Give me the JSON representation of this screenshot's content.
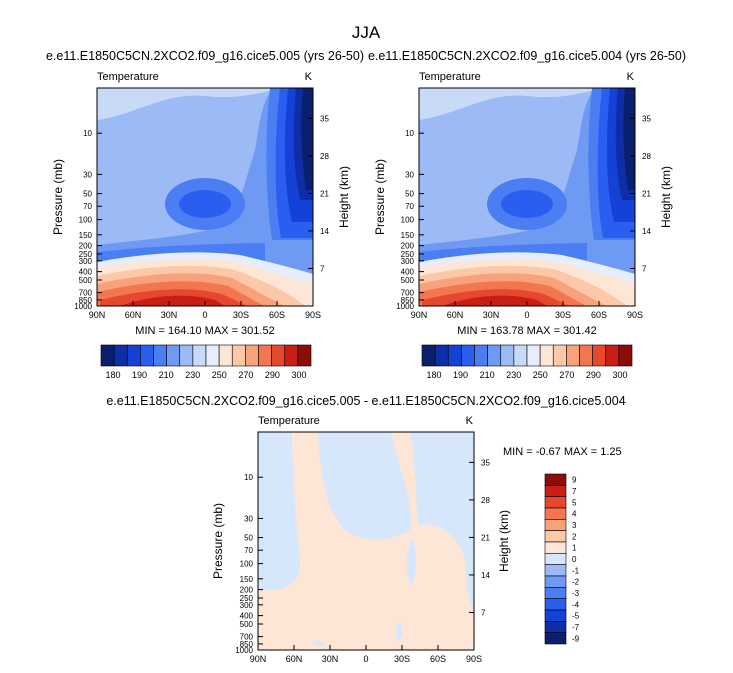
{
  "figure": {
    "season": "JJA"
  },
  "palette_main": [
    "#0a1f6e",
    "#0e2ea8",
    "#1442d6",
    "#2a5ef0",
    "#4a7ef2",
    "#6f9af4",
    "#9cbaf6",
    "#c8daf8",
    "#e6eefc",
    "#fde6d6",
    "#fcc8a8",
    "#f8a27c",
    "#f47650",
    "#e6482e",
    "#c81e14",
    "#8c0c08"
  ],
  "palette_diff": [
    "#0a1f6e",
    "#0e2ea8",
    "#1442d6",
    "#2a5ef0",
    "#4a7ef2",
    "#6f9af4",
    "#9cbaf6",
    "#d6e7fb",
    "#fde6d6",
    "#fcc8a8",
    "#f8a27c",
    "#f47650",
    "#e6482e",
    "#c81e14",
    "#8c0c08"
  ],
  "chart_data": [
    {
      "type": "heatmap",
      "id": "panel1",
      "title": "e.e11.E1850C5CN.2XCO2.f09_g16.cice5.005 (yrs 26-50)",
      "left_label": "Temperature",
      "right_label": "K",
      "ylabel": "Pressure (mb)",
      "y2label": "Height (km)",
      "x_ticks": [
        "90N",
        "60N",
        "30N",
        "0",
        "30S",
        "60S",
        "90S"
      ],
      "p_ticks": [
        10,
        30,
        50,
        70,
        100,
        150,
        200,
        250,
        300,
        400,
        500,
        700,
        850,
        1000
      ],
      "h_ticks": [
        35,
        28,
        21,
        14,
        7
      ],
      "xlim": [
        90,
        -90
      ],
      "ylim_mb": [
        1000,
        3
      ],
      "min_value": 164.1,
      "max_value": 301.52,
      "stats_text": "MIN = 164.10   MAX = 301.52"
    },
    {
      "type": "heatmap",
      "id": "panel2",
      "title": "e.e11.E1850C5CN.2XCO2.f09_g16.cice5.004 (yrs 26-50)",
      "left_label": "Temperature",
      "right_label": "K",
      "ylabel": "Pressure (mb)",
      "y2label": "Height (km)",
      "x_ticks": [
        "90N",
        "60N",
        "30N",
        "0",
        "30S",
        "60S",
        "90S"
      ],
      "p_ticks": [
        10,
        30,
        50,
        70,
        100,
        150,
        200,
        250,
        300,
        400,
        500,
        700,
        850,
        1000
      ],
      "h_ticks": [
        35,
        28,
        21,
        14,
        7
      ],
      "xlim": [
        90,
        -90
      ],
      "ylim_mb": [
        1000,
        3
      ],
      "min_value": 163.78,
      "max_value": 301.42,
      "stats_text": "MIN = 163.78   MAX = 301.42"
    },
    {
      "type": "colorbar",
      "id": "colorbar_main",
      "levels": [
        180,
        190,
        200,
        210,
        220,
        230,
        240,
        250,
        260,
        270,
        280,
        290,
        300
      ],
      "labels": [
        "180",
        "190",
        "210",
        "230",
        "250",
        "270",
        "290",
        "300"
      ]
    },
    {
      "type": "heatmap",
      "id": "panel_diff",
      "title": "e.e11.E1850C5CN.2XCO2.f09_g16.cice5.005 - e.e11.E1850C5CN.2XCO2.f09_g16.cice5.004",
      "left_label": "Temperature",
      "right_label": "K",
      "ylabel": "Pressure (mb)",
      "y2label": "Height (km)",
      "x_ticks": [
        "90N",
        "60N",
        "30N",
        "0",
        "30S",
        "60S",
        "90S"
      ],
      "p_ticks": [
        10,
        30,
        50,
        70,
        100,
        150,
        200,
        250,
        300,
        400,
        500,
        700,
        850,
        1000
      ],
      "h_ticks": [
        35,
        28,
        21,
        14,
        7
      ],
      "xlim": [
        90,
        -90
      ],
      "ylim_mb": [
        1000,
        3
      ],
      "min_value": -0.67,
      "max_value": 1.25,
      "stats_text": "MIN =  -0.67   MAX =   1.25"
    },
    {
      "type": "colorbar",
      "id": "colorbar_diff",
      "labels": [
        "9",
        "7",
        "5",
        "4",
        "3",
        "2",
        "1",
        "0",
        "-1",
        "-2",
        "-3",
        "-4",
        "-5",
        "-7",
        "-9"
      ]
    }
  ]
}
